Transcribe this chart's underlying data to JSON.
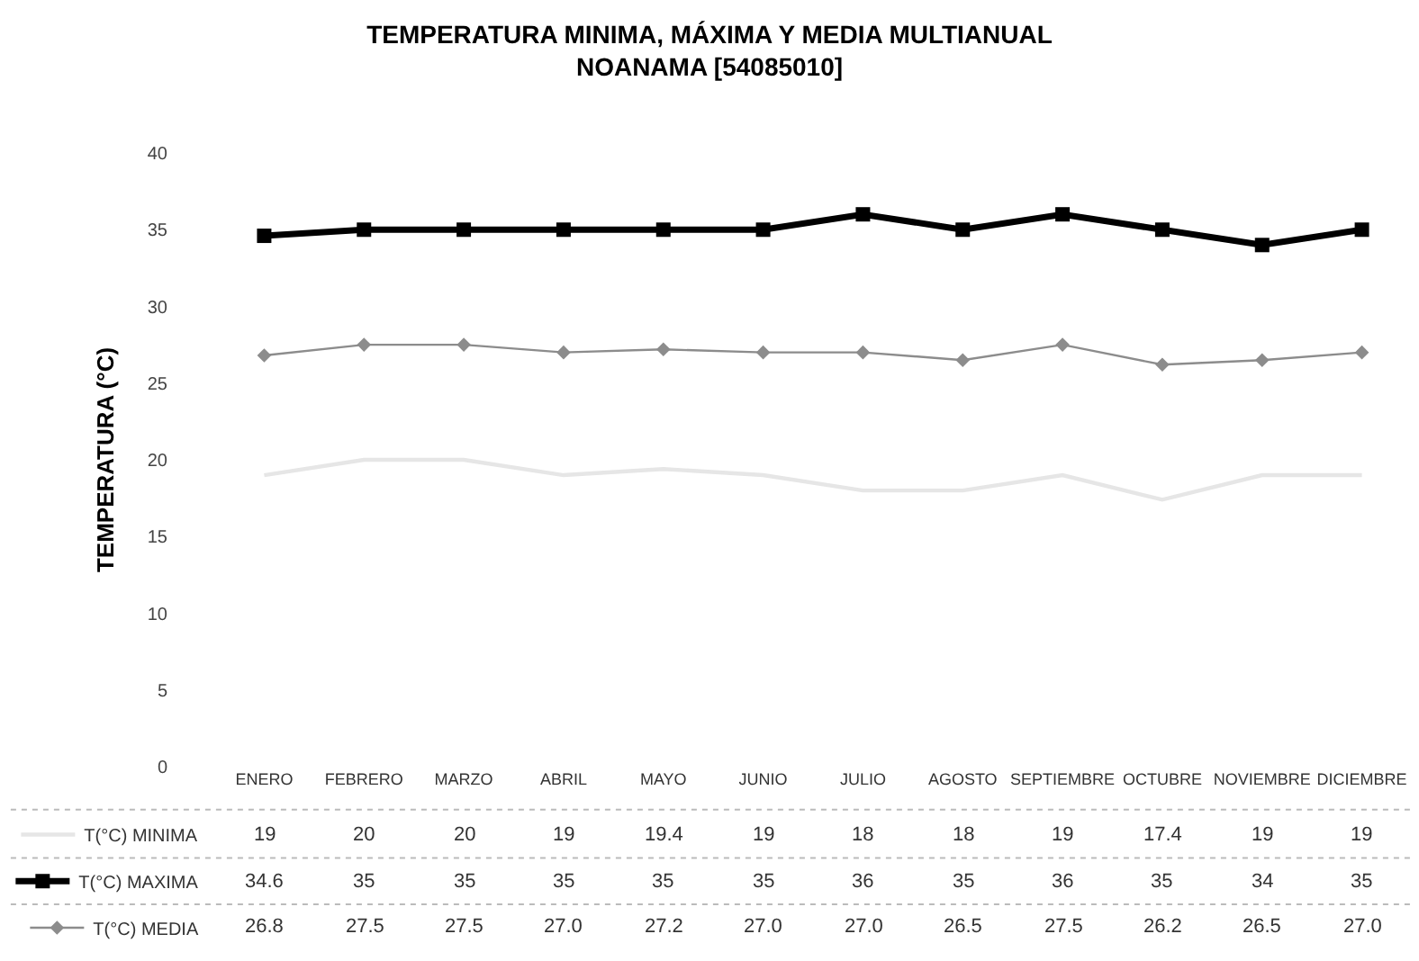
{
  "chart_data": {
    "type": "line",
    "title": "TEMPERATURA MINIMA, MÁXIMA Y MEDIA MULTIANUAL\nNOANAMA [54085010]",
    "ylabel": "TEMPERATURA (°C)",
    "categories": [
      "ENERO",
      "FEBRERO",
      "MARZO",
      "ABRIL",
      "MAYO",
      "JUNIO",
      "JULIO",
      "AGOSTO",
      "SEPTIEMBRE",
      "OCTUBRE",
      "NOVIEMBRE",
      "DICIEMBRE"
    ],
    "series": [
      {
        "name": "T(°C) MINIMA",
        "color": "#e6e6e6",
        "marker": "none",
        "values": [
          19,
          20,
          20,
          19,
          19.4,
          19,
          18,
          18,
          19,
          17.4,
          19,
          19
        ],
        "value_labels": [
          "19",
          "20",
          "20",
          "19",
          "19.4",
          "19",
          "18",
          "18",
          "19",
          "17.4",
          "19",
          "19"
        ]
      },
      {
        "name": "T(°C) MAXIMA",
        "color": "#000000",
        "marker": "square",
        "values": [
          34.6,
          35,
          35,
          35,
          35,
          35,
          36,
          35,
          36,
          35,
          34,
          35
        ],
        "value_labels": [
          "34.6",
          "35",
          "35",
          "35",
          "35",
          "35",
          "36",
          "35",
          "36",
          "35",
          "34",
          "35"
        ]
      },
      {
        "name": "T(°C) MEDIA",
        "color": "#8c8c8c",
        "marker": "diamond",
        "values": [
          26.8,
          27.5,
          27.5,
          27.0,
          27.2,
          27.0,
          27.0,
          26.5,
          27.5,
          26.2,
          26.5,
          27.0
        ],
        "value_labels": [
          "26.8",
          "27.5",
          "27.5",
          "27.0",
          "27.2",
          "27.0",
          "27.0",
          "26.5",
          "27.5",
          "26.2",
          "26.5",
          "27.0"
        ]
      }
    ],
    "ylim": [
      0,
      40
    ],
    "yticks": [
      0,
      5,
      10,
      15,
      20,
      25,
      30,
      35,
      40
    ],
    "legend": "bottom"
  }
}
